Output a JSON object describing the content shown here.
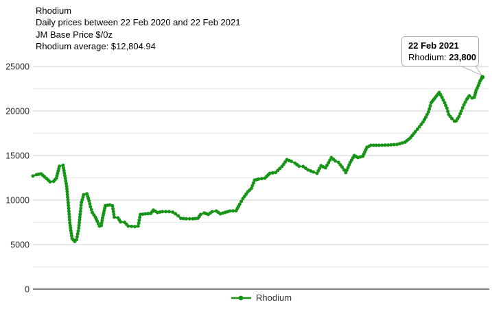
{
  "title": {
    "line1": "Rhodium",
    "line2": "Daily prices between 22 Feb 2020 and 22 Feb 2021",
    "line3": "JM Base Price $/0z",
    "line4": "Rhodium average: $12,804.94"
  },
  "tooltip": {
    "date": "22 Feb 2021",
    "series_label": "Rhodium:",
    "value": "23,800"
  },
  "legend": {
    "label": "Rhodium"
  },
  "chart_data": {
    "type": "line",
    "title": "Rhodium",
    "subtitle": "Daily prices between 22 Feb 2020 and 22 Feb 2021",
    "ylabel": "JM Base Price $/0z",
    "average": 12804.94,
    "x_range": [
      "22 Feb 2020",
      "22 Feb 2021"
    ],
    "x_labels_visible": false,
    "ylim": [
      0,
      25000
    ],
    "yticks": [
      0,
      5000,
      10000,
      15000,
      20000,
      25000
    ],
    "minor_ytick_step": 2500,
    "grid": true,
    "legend_position": "bottom",
    "line_color": "#169416",
    "last_point": {
      "date": "22 Feb 2021",
      "value": 23800
    },
    "points": [
      [
        0.0,
        12700
      ],
      [
        0.008,
        12850
      ],
      [
        0.018,
        12950
      ],
      [
        0.026,
        12600
      ],
      [
        0.034,
        12250
      ],
      [
        0.038,
        12050
      ],
      [
        0.046,
        12100
      ],
      [
        0.052,
        12450
      ],
      [
        0.059,
        13800
      ],
      [
        0.067,
        13900
      ],
      [
        0.072,
        12450
      ],
      [
        0.075,
        11550
      ],
      [
        0.079,
        9400
      ],
      [
        0.082,
        7450
      ],
      [
        0.087,
        5700
      ],
      [
        0.093,
        5350
      ],
      [
        0.097,
        5550
      ],
      [
        0.102,
        6850
      ],
      [
        0.105,
        8400
      ],
      [
        0.108,
        9750
      ],
      [
        0.113,
        10600
      ],
      [
        0.12,
        10700
      ],
      [
        0.125,
        9900
      ],
      [
        0.128,
        9250
      ],
      [
        0.132,
        8600
      ],
      [
        0.139,
        8080
      ],
      [
        0.143,
        7620
      ],
      [
        0.148,
        7080
      ],
      [
        0.152,
        7150
      ],
      [
        0.155,
        8000
      ],
      [
        0.161,
        9380
      ],
      [
        0.171,
        9450
      ],
      [
        0.177,
        9350
      ],
      [
        0.181,
        8080
      ],
      [
        0.189,
        8000
      ],
      [
        0.195,
        7550
      ],
      [
        0.204,
        7500
      ],
      [
        0.212,
        7080
      ],
      [
        0.227,
        7020
      ],
      [
        0.234,
        7080
      ],
      [
        0.239,
        8385
      ],
      [
        0.25,
        8450
      ],
      [
        0.262,
        8500
      ],
      [
        0.268,
        8870
      ],
      [
        0.277,
        8600
      ],
      [
        0.288,
        8700
      ],
      [
        0.303,
        8700
      ],
      [
        0.311,
        8650
      ],
      [
        0.317,
        8460
      ],
      [
        0.323,
        8230
      ],
      [
        0.329,
        7950
      ],
      [
        0.341,
        7900
      ],
      [
        0.356,
        7900
      ],
      [
        0.367,
        7950
      ],
      [
        0.373,
        8385
      ],
      [
        0.381,
        8550
      ],
      [
        0.39,
        8385
      ],
      [
        0.399,
        8700
      ],
      [
        0.408,
        8770
      ],
      [
        0.417,
        8460
      ],
      [
        0.428,
        8615
      ],
      [
        0.438,
        8770
      ],
      [
        0.452,
        8800
      ],
      [
        0.46,
        9540
      ],
      [
        0.467,
        10150
      ],
      [
        0.478,
        10920
      ],
      [
        0.486,
        11310
      ],
      [
        0.493,
        12230
      ],
      [
        0.502,
        12350
      ],
      [
        0.516,
        12460
      ],
      [
        0.527,
        13000
      ],
      [
        0.54,
        13100
      ],
      [
        0.554,
        13770
      ],
      [
        0.565,
        14540
      ],
      [
        0.575,
        14350
      ],
      [
        0.583,
        14150
      ],
      [
        0.592,
        13800
      ],
      [
        0.601,
        13770
      ],
      [
        0.612,
        13385
      ],
      [
        0.624,
        13150
      ],
      [
        0.632,
        13000
      ],
      [
        0.641,
        13850
      ],
      [
        0.651,
        13615
      ],
      [
        0.664,
        14770
      ],
      [
        0.673,
        14385
      ],
      [
        0.68,
        14230
      ],
      [
        0.688,
        13700
      ],
      [
        0.696,
        13080
      ],
      [
        0.706,
        14230
      ],
      [
        0.715,
        15000
      ],
      [
        0.723,
        14770
      ],
      [
        0.734,
        14920
      ],
      [
        0.743,
        15920
      ],
      [
        0.752,
        16150
      ],
      [
        0.77,
        16150
      ],
      [
        0.79,
        16180
      ],
      [
        0.81,
        16250
      ],
      [
        0.828,
        16500
      ],
      [
        0.84,
        17000
      ],
      [
        0.851,
        17690
      ],
      [
        0.86,
        18230
      ],
      [
        0.868,
        18770
      ],
      [
        0.874,
        19300
      ],
      [
        0.88,
        19900
      ],
      [
        0.886,
        20920
      ],
      [
        0.892,
        21310
      ],
      [
        0.898,
        21690
      ],
      [
        0.904,
        22080
      ],
      [
        0.91,
        21540
      ],
      [
        0.916,
        20920
      ],
      [
        0.921,
        20310
      ],
      [
        0.925,
        19615
      ],
      [
        0.932,
        19150
      ],
      [
        0.938,
        18850
      ],
      [
        0.942,
        18900
      ],
      [
        0.948,
        19385
      ],
      [
        0.953,
        20000
      ],
      [
        0.959,
        20690
      ],
      [
        0.965,
        21300
      ],
      [
        0.971,
        21700
      ],
      [
        0.977,
        21460
      ],
      [
        0.982,
        21540
      ],
      [
        0.986,
        22310
      ],
      [
        0.991,
        22850
      ],
      [
        0.995,
        23385
      ],
      [
        1.0,
        23800
      ]
    ]
  }
}
